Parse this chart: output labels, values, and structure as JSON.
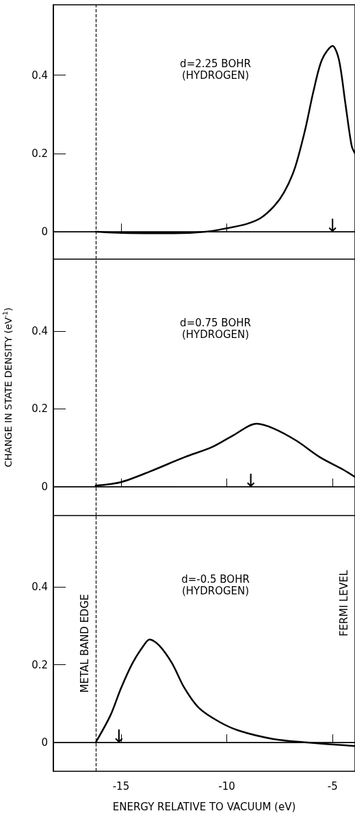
{
  "chart_data": [
    {
      "type": "line",
      "title": "d=2.25 BOHR",
      "subtitle": "(HYDROGEN)",
      "x": [
        -16.2,
        -14.9,
        -12.6,
        -11,
        -10,
        -9.06,
        -8.4,
        -7.77,
        -7.3,
        -6.8,
        -6.3,
        -5.9,
        -5.5,
        -5,
        -4.7,
        -4.4,
        -4.1,
        -3.94
      ],
      "series": [
        {
          "color": "#000000",
          "values": [
            0,
            -0.003,
            -0.004,
            0,
            0.009,
            0.02,
            0.035,
            0.065,
            0.1,
            0.16,
            0.26,
            0.36,
            0.44,
            0.475,
            0.44,
            0.33,
            0.22,
            0.2
          ]
        }
      ],
      "xlim": [
        -18.2,
        -3.94
      ],
      "xticks": [
        -15,
        -10,
        -5
      ],
      "ylim": [
        -0.07,
        0.58
      ],
      "yticks": [
        0,
        0.2,
        0.4
      ],
      "tick_labels": "y",
      "grid": false,
      "marker": "none",
      "line_style": "solid",
      "ref_lines": [
        {
          "axis": "x",
          "value": -16.2,
          "label": null,
          "line_style": "dashed",
          "color": "#000000"
        },
        {
          "axis": "y",
          "value": 0,
          "label": null,
          "line_style": "solid",
          "color": "#000000"
        }
      ],
      "annotations": [
        {
          "text": "↓",
          "x": -5,
          "y": 0
        }
      ]
    },
    {
      "type": "line",
      "title": "d=0.75 BOHR",
      "subtitle": "(HYDROGEN)",
      "ylabel": "CHANGE IN STATE DENSITY (eV$^{-1}$)",
      "x": [
        -16.2,
        -15,
        -13.6,
        -12,
        -10.7,
        -9.7,
        -8.6,
        -7.8,
        -6.7,
        -5.6,
        -4.5,
        -3.94
      ],
      "series": [
        {
          "color": "#000000",
          "values": [
            0.003,
            0.012,
            0.04,
            0.076,
            0.102,
            0.132,
            0.162,
            0.15,
            0.118,
            0.076,
            0.044,
            0.025
          ]
        }
      ],
      "xlim": [
        -18.2,
        -3.94
      ],
      "xticks": [
        -15,
        -10,
        -5
      ],
      "ylim": [
        -0.074,
        0.585
      ],
      "yticks": [
        0,
        0.2,
        0.4
      ],
      "tick_labels": "y",
      "grid": false,
      "marker": "none",
      "line_style": "solid",
      "ref_lines": [
        {
          "axis": "x",
          "value": -16.2,
          "label": null,
          "line_style": "dashed",
          "color": "#000000"
        },
        {
          "axis": "y",
          "value": 0,
          "label": null,
          "line_style": "solid",
          "color": "#000000"
        }
      ],
      "annotations": [
        {
          "text": "↓",
          "x": -8.87,
          "y": 0
        }
      ]
    },
    {
      "type": "line",
      "title": "d=-0.5 BOHR",
      "subtitle": "(HYDROGEN)",
      "xlabel": "ENERGY RELATIVE TO VACUUM (eV)",
      "x": [
        -16.2,
        -15.5,
        -15,
        -14.45,
        -13.9,
        -13.65,
        -13.2,
        -12.6,
        -12,
        -11.3,
        -10.35,
        -9.4,
        -7.8,
        -6.2,
        -3.94
      ],
      "series": [
        {
          "color": "#000000",
          "values": [
            0,
            0.07,
            0.14,
            0.205,
            0.252,
            0.265,
            0.25,
            0.205,
            0.14,
            0.088,
            0.053,
            0.03,
            0.009,
            0,
            -0.009
          ]
        }
      ],
      "xlim": [
        -18.2,
        -3.94
      ],
      "xticks": [
        -15,
        -10,
        -5
      ],
      "ylim": [
        -0.074,
        0.584
      ],
      "yticks": [
        0,
        0.2,
        0.4
      ],
      "grid": false,
      "marker": "none",
      "line_style": "solid",
      "ref_lines": [
        {
          "axis": "x",
          "value": -16.2,
          "label": "METAL BAND EDGE",
          "line_style": "dashed",
          "color": "#000000"
        },
        {
          "axis": "y",
          "value": 0,
          "label": null,
          "line_style": "solid",
          "color": "#000000"
        }
      ],
      "annotations": [
        {
          "text": "↓",
          "x": -15.1,
          "y": 0
        },
        "FERMI LEVEL"
      ]
    }
  ]
}
